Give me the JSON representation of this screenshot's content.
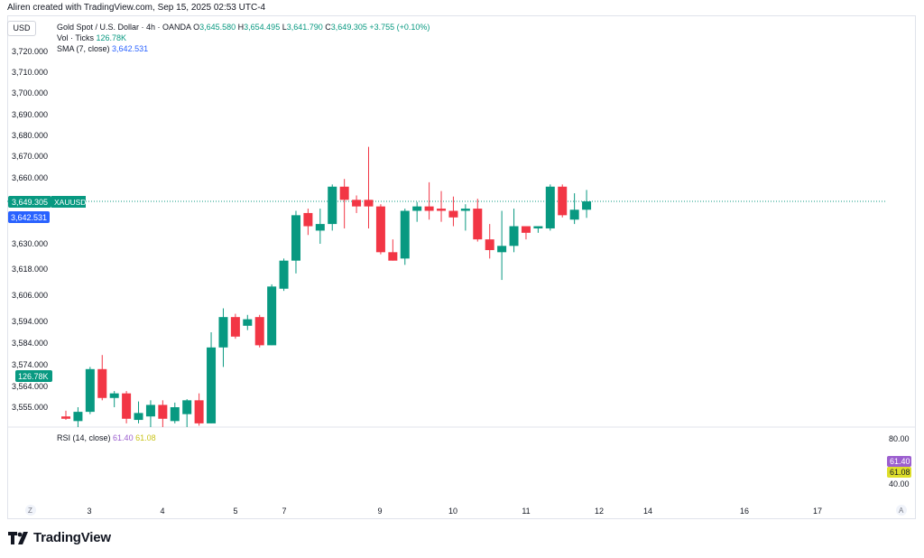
{
  "credit": "Aliren created with TradingView.com, Sep 15, 2025 02:53 UTC-4",
  "currency": "USD",
  "legend": {
    "symbol": "Gold Spot / U.S. Dollar · 4h · OANDA",
    "o_label": "O",
    "o_value": "3,645.580",
    "h_label": "H",
    "h_value": "3,654.495",
    "l_label": "L",
    "l_value": "3,641.790",
    "c_label": "C",
    "c_value": "3,649.305",
    "change": "+3.755 (+0.10%)",
    "vol_label": "Vol · Ticks",
    "vol_value": "126.78K",
    "sma_label": "SMA (7, close)",
    "sma_value": "3,642.531"
  },
  "rsi_legend": {
    "label": "RSI (14, close)",
    "value1": "61.40",
    "value2": "61.08"
  },
  "brand": "TradingView",
  "colors": {
    "up": "#089981",
    "down": "#f23645",
    "sma": "#2962ff",
    "rsi": "#9c5fcf",
    "rsi_ma": "#dede2a"
  },
  "chart_data": {
    "type": "candlestick",
    "price_axis_ticks": [
      "3,720.000",
      "3,710.000",
      "3,700.000",
      "3,690.000",
      "3,680.000",
      "3,670.000",
      "3,660.000",
      "3,630.000",
      "3,618.000",
      "3,606.000",
      "3,594.000",
      "3,584.000",
      "3,574.000",
      "3,564.000",
      "3,555.000"
    ],
    "time_axis_ticks": [
      "3",
      "4",
      "5",
      "7",
      "9",
      "10",
      "11",
      "12",
      "14",
      "16",
      "17"
    ],
    "last_price_label": "3,649.305",
    "symbol_tag": "XAUUSD",
    "sma_label": "3,642.531",
    "volume_label": "126.78K",
    "candles": [
      {
        "o": 3551.0,
        "h": 3553.5,
        "l": 3549.5,
        "c": 3550.0
      },
      {
        "o": 3549.0,
        "h": 3555.0,
        "l": 3546.0,
        "c": 3553.0
      },
      {
        "o": 3553.0,
        "h": 3573.0,
        "l": 3552.0,
        "c": 3572.0
      },
      {
        "o": 3572.0,
        "h": 3578.5,
        "l": 3558.0,
        "c": 3559.0
      },
      {
        "o": 3559.0,
        "h": 3562.0,
        "l": 3555.0,
        "c": 3561.0
      },
      {
        "o": 3561.0,
        "h": 3562.0,
        "l": 3548.0,
        "c": 3550.0
      },
      {
        "o": 3549.5,
        "h": 3557.5,
        "l": 3548.0,
        "c": 3552.5
      },
      {
        "o": 3551.0,
        "h": 3558.0,
        "l": 3546.0,
        "c": 3556.0
      },
      {
        "o": 3556.0,
        "h": 3558.0,
        "l": 3546.0,
        "c": 3550.0
      },
      {
        "o": 3549.0,
        "h": 3557.0,
        "l": 3548.0,
        "c": 3555.0
      },
      {
        "o": 3552.0,
        "h": 3558.5,
        "l": 3546.0,
        "c": 3558.0
      },
      {
        "o": 3558.0,
        "h": 3561.0,
        "l": 3547.0,
        "c": 3548.0
      },
      {
        "o": 3548.0,
        "h": 3589.0,
        "l": 3548.0,
        "c": 3582.0
      },
      {
        "o": 3582.0,
        "h": 3600.0,
        "l": 3573.0,
        "c": 3596.0
      },
      {
        "o": 3596.0,
        "h": 3597.5,
        "l": 3586.0,
        "c": 3587.0
      },
      {
        "o": 3592.0,
        "h": 3597.0,
        "l": 3590.0,
        "c": 3595.0
      },
      {
        "o": 3596.0,
        "h": 3597.0,
        "l": 3582.0,
        "c": 3583.0
      },
      {
        "o": 3583.0,
        "h": 3611.0,
        "l": 3583.0,
        "c": 3610.0
      },
      {
        "o": 3609.0,
        "h": 3623.0,
        "l": 3608.0,
        "c": 3622.0
      },
      {
        "o": 3622.0,
        "h": 3645.0,
        "l": 3616.0,
        "c": 3643.0
      },
      {
        "o": 3644.0,
        "h": 3646.0,
        "l": 3634.0,
        "c": 3638.0
      },
      {
        "o": 3636.0,
        "h": 3646.0,
        "l": 3630.0,
        "c": 3639.0
      },
      {
        "o": 3639.0,
        "h": 3657.0,
        "l": 3636.0,
        "c": 3656.0
      },
      {
        "o": 3656.0,
        "h": 3659.5,
        "l": 3637.0,
        "c": 3650.0
      },
      {
        "o": 3650.0,
        "h": 3652.0,
        "l": 3644.0,
        "c": 3647.0
      },
      {
        "o": 3650.0,
        "h": 3674.5,
        "l": 3637.0,
        "c": 3647.0
      },
      {
        "o": 3647.0,
        "h": 3648.0,
        "l": 3625.0,
        "c": 3626.0
      },
      {
        "o": 3626.0,
        "h": 3632.0,
        "l": 3622.0,
        "c": 3622.0
      },
      {
        "o": 3623.0,
        "h": 3646.0,
        "l": 3620.0,
        "c": 3645.0
      },
      {
        "o": 3645.0,
        "h": 3649.0,
        "l": 3640.0,
        "c": 3647.0
      },
      {
        "o": 3647.0,
        "h": 3658.0,
        "l": 3641.0,
        "c": 3645.0
      },
      {
        "o": 3646.0,
        "h": 3654.0,
        "l": 3640.0,
        "c": 3645.0
      },
      {
        "o": 3645.0,
        "h": 3651.5,
        "l": 3638.0,
        "c": 3642.0
      },
      {
        "o": 3645.0,
        "h": 3648.0,
        "l": 3636.0,
        "c": 3646.0
      },
      {
        "o": 3646.0,
        "h": 3650.5,
        "l": 3631.0,
        "c": 3632.0
      },
      {
        "o": 3632.0,
        "h": 3639.0,
        "l": 3623.0,
        "c": 3627.0
      },
      {
        "o": 3626.0,
        "h": 3645.0,
        "l": 3613.0,
        "c": 3629.0
      },
      {
        "o": 3629.0,
        "h": 3646.0,
        "l": 3626.0,
        "c": 3638.0
      },
      {
        "o": 3638.0,
        "h": 3637.5,
        "l": 3632.0,
        "c": 3635.0
      },
      {
        "o": 3637.0,
        "h": 3638.0,
        "l": 3635.0,
        "c": 3638.0
      },
      {
        "o": 3637.0,
        "h": 3657.0,
        "l": 3636.0,
        "c": 3656.0
      },
      {
        "o": 3656.0,
        "h": 3657.0,
        "l": 3642.0,
        "c": 3643.0
      },
      {
        "o": 3641.0,
        "h": 3653.0,
        "l": 3639.0,
        "c": 3645.5
      },
      {
        "o": 3645.5,
        "h": 3654.5,
        "l": 3641.8,
        "c": 3649.3
      }
    ],
    "rsi": {
      "upper": 80,
      "lower": 40,
      "ticks": [
        "80.00",
        "40.00"
      ],
      "value": "61.40",
      "ma_value": "61.08"
    }
  }
}
